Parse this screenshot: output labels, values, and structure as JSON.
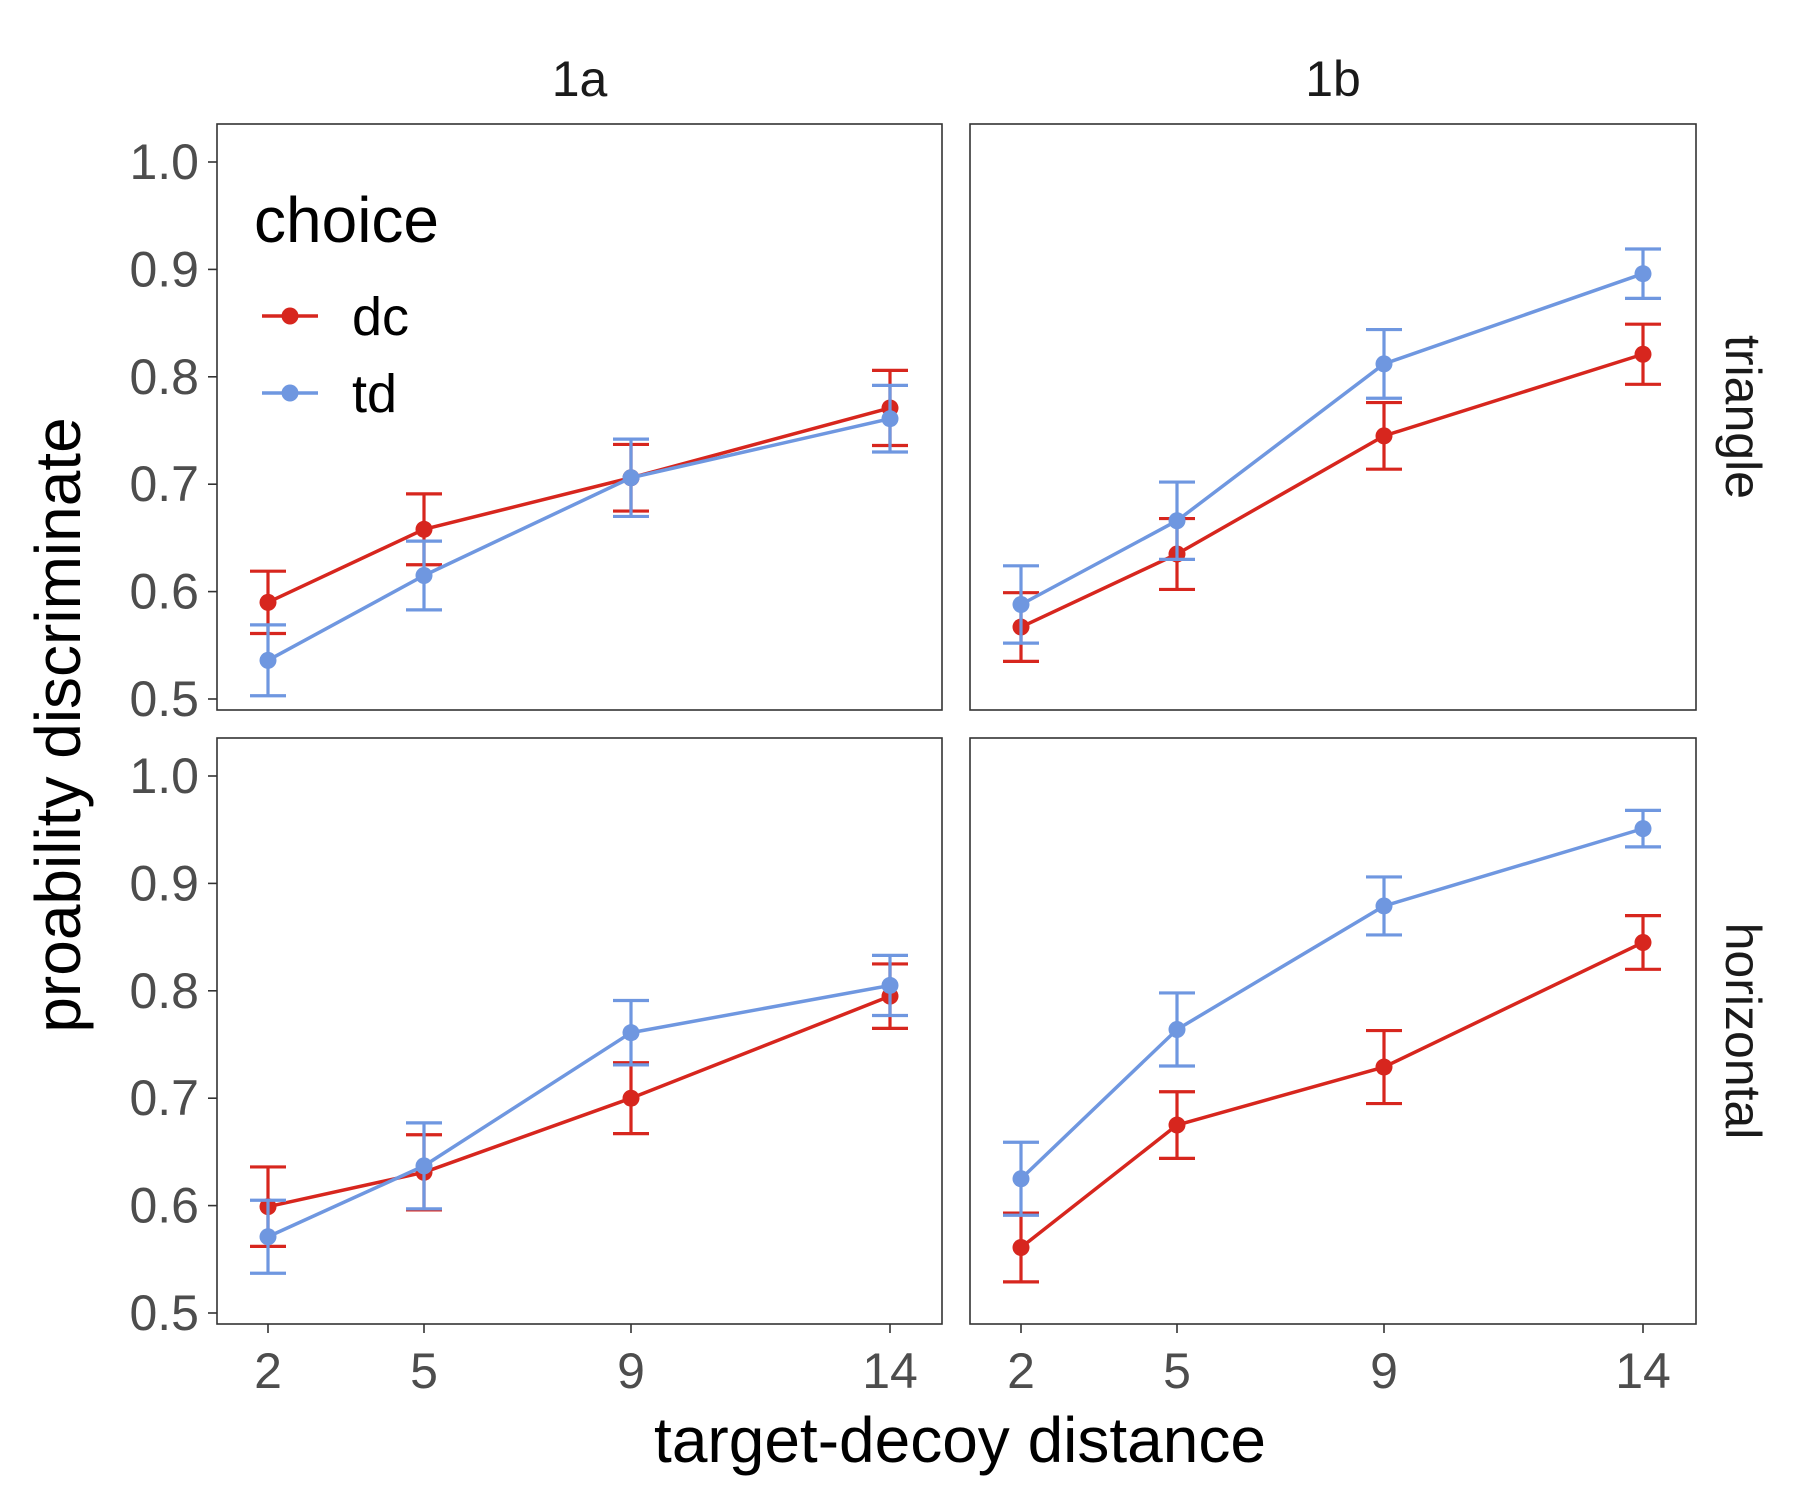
{
  "chart_data": {
    "type": "line",
    "ylabel": "proability discriminate",
    "xlabel": "target-decoy distance",
    "x": [
      2,
      5,
      9,
      14
    ],
    "xticks": [
      "2",
      "5",
      "9",
      "14"
    ],
    "ylim": [
      0.5,
      1.0
    ],
    "yticks": [
      "0.5",
      "0.6",
      "0.7",
      "0.8",
      "0.9",
      "1.0"
    ],
    "grid": false,
    "legend": {
      "title": "choice",
      "placement": "inside top-left",
      "entries": [
        {
          "name": "dc",
          "color": "#d7261e"
        },
        {
          "name": "td",
          "color": "#6f97e0"
        }
      ]
    },
    "col_facets": [
      "1a",
      "1b"
    ],
    "row_facets": [
      "triangle",
      "horizontal"
    ],
    "panels": [
      {
        "col": "1a",
        "row": "triangle",
        "series": [
          {
            "name": "dc",
            "values": [
              0.59,
              0.658,
              0.706,
              0.771
            ],
            "lower": [
              0.561,
              0.625,
              0.675,
              0.736
            ],
            "upper": [
              0.619,
              0.691,
              0.737,
              0.806
            ]
          },
          {
            "name": "td",
            "values": [
              0.536,
              0.615,
              0.706,
              0.761
            ],
            "lower": [
              0.503,
              0.583,
              0.67,
              0.73
            ],
            "upper": [
              0.569,
              0.647,
              0.742,
              0.792
            ]
          }
        ]
      },
      {
        "col": "1b",
        "row": "triangle",
        "series": [
          {
            "name": "dc",
            "values": [
              0.567,
              0.635,
              0.745,
              0.821
            ],
            "lower": [
              0.535,
              0.602,
              0.714,
              0.793
            ],
            "upper": [
              0.599,
              0.668,
              0.776,
              0.849
            ]
          },
          {
            "name": "td",
            "values": [
              0.588,
              0.666,
              0.812,
              0.896
            ],
            "lower": [
              0.552,
              0.63,
              0.78,
              0.873
            ],
            "upper": [
              0.624,
              0.702,
              0.844,
              0.919
            ]
          }
        ]
      },
      {
        "col": "1a",
        "row": "horizontal",
        "series": [
          {
            "name": "dc",
            "values": [
              0.599,
              0.631,
              0.7,
              0.795
            ],
            "lower": [
              0.562,
              0.596,
              0.667,
              0.765
            ],
            "upper": [
              0.636,
              0.666,
              0.733,
              0.825
            ]
          },
          {
            "name": "td",
            "values": [
              0.571,
              0.637,
              0.761,
              0.805
            ],
            "lower": [
              0.537,
              0.597,
              0.731,
              0.777
            ],
            "upper": [
              0.605,
              0.677,
              0.791,
              0.833
            ]
          }
        ]
      },
      {
        "col": "1b",
        "row": "horizontal",
        "series": [
          {
            "name": "dc",
            "values": [
              0.561,
              0.675,
              0.729,
              0.845
            ],
            "lower": [
              0.529,
              0.644,
              0.695,
              0.82
            ],
            "upper": [
              0.593,
              0.706,
              0.763,
              0.87
            ]
          },
          {
            "name": "td",
            "values": [
              0.625,
              0.764,
              0.879,
              0.951
            ],
            "lower": [
              0.591,
              0.73,
              0.852,
              0.934
            ],
            "upper": [
              0.659,
              0.798,
              0.906,
              0.968
            ]
          }
        ]
      }
    ]
  }
}
